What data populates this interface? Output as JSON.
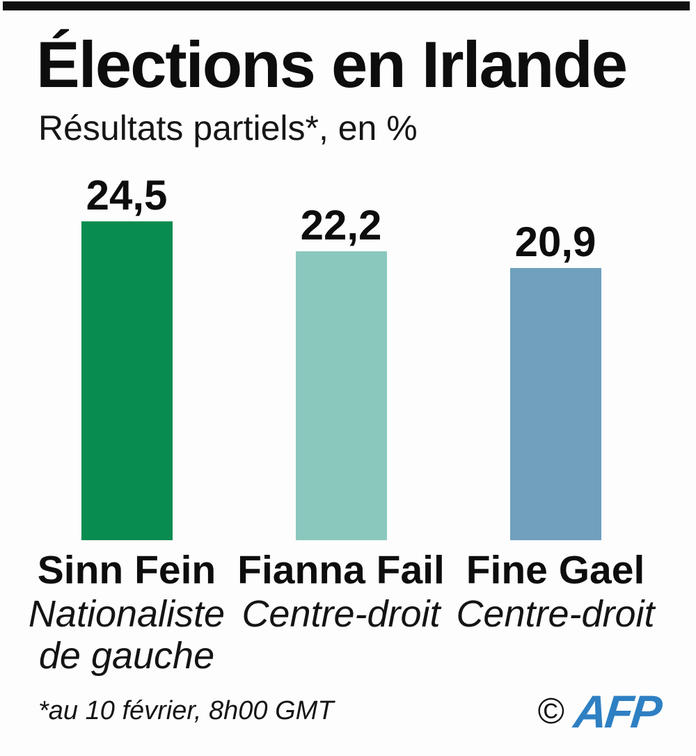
{
  "header": {
    "title": "Élections en Irlande",
    "subtitle": "Résultats partiels*, en %",
    "top_bar_color": "#101010"
  },
  "chart_data": {
    "type": "bar",
    "title": "Élections en Irlande",
    "subtitle": "Résultats partiels*, en %",
    "categories": [
      "Sinn Fein",
      "Fianna Fail",
      "Fine Gael"
    ],
    "values": [
      24.5,
      22.2,
      20.9
    ],
    "value_labels": [
      "24,5",
      "22,2",
      "20,9"
    ],
    "descriptions": [
      "Nationaliste de gauche",
      "Centre-droit",
      "Centre-droit"
    ],
    "bar_colors": [
      "#088C50",
      "#8AC8BE",
      "#70A0BE"
    ],
    "ylim": [
      0,
      24.5
    ],
    "grid": false,
    "legend": false,
    "xlabel": "",
    "ylabel": "%"
  },
  "footer": {
    "note": "*au 10 février, 8h00 GMT",
    "copyright": "©",
    "logo_text": "AFP",
    "logo_color": "#2E80C3"
  }
}
